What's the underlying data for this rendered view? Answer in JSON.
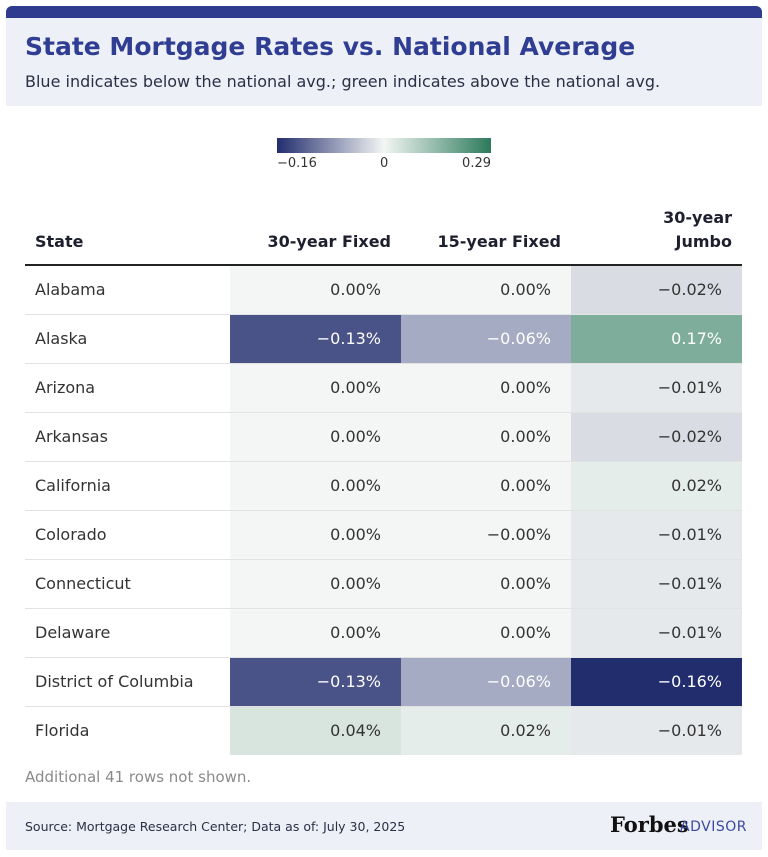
{
  "header": {
    "title": "State Mortgage Rates vs. National Average",
    "subtitle": "Blue indicates below the national avg.; green indicates above the national avg."
  },
  "legend": {
    "ticks": [
      {
        "value": -0.16,
        "label": "−0.16"
      },
      0,
      0.29
    ],
    "colors": [
      "#222d6e",
      "#f3f6f4",
      "#2c7a5c"
    ]
  },
  "table": {
    "columns": [
      "State",
      "30-year Fixed",
      "15-year Fixed",
      "30-year Jumbo"
    ],
    "rows": [
      [
        "Alabama",
        {
          "value": 0,
          "label": "0.00%"
        },
        {
          "value": 0,
          "label": "0.00%"
        },
        {
          "value": -0.02,
          "label": "−0.02%"
        }
      ],
      [
        "Alaska",
        {
          "value": -0.13,
          "label": "−0.13%"
        },
        {
          "value": -0.06,
          "label": "−0.06%"
        },
        {
          "value": 0.17,
          "label": "0.17%"
        }
      ],
      [
        "Arizona",
        {
          "value": 0,
          "label": "0.00%"
        },
        {
          "value": 0,
          "label": "0.00%"
        },
        {
          "value": -0.01,
          "label": "−0.01%"
        }
      ],
      [
        "Arkansas",
        {
          "value": 0,
          "label": "0.00%"
        },
        {
          "value": 0,
          "label": "0.00%"
        },
        {
          "value": -0.02,
          "label": "−0.02%"
        }
      ],
      [
        "California",
        {
          "value": 0,
          "label": "0.00%"
        },
        {
          "value": 0,
          "label": "0.00%"
        },
        {
          "value": 0.02,
          "label": "0.02%"
        }
      ],
      [
        "Colorado",
        {
          "value": 0,
          "label": "0.00%"
        },
        {
          "value": -0.0,
          "label": "−0.00%"
        },
        {
          "value": -0.01,
          "label": "−0.01%"
        }
      ],
      [
        "Connecticut",
        {
          "value": 0,
          "label": "0.00%"
        },
        {
          "value": 0,
          "label": "0.00%"
        },
        {
          "value": -0.01,
          "label": "−0.01%"
        }
      ],
      [
        "Delaware",
        {
          "value": 0,
          "label": "0.00%"
        },
        {
          "value": 0,
          "label": "0.00%"
        },
        {
          "value": -0.01,
          "label": "−0.01%"
        }
      ],
      [
        "District of Columbia",
        {
          "value": -0.13,
          "label": "−0.13%"
        },
        {
          "value": -0.06,
          "label": "−0.06%"
        },
        {
          "value": -0.16,
          "label": "−0.16%"
        }
      ],
      [
        "Florida",
        {
          "value": 0.04,
          "label": "0.04%"
        },
        {
          "value": 0.02,
          "label": "0.02%"
        },
        {
          "value": -0.01,
          "label": "−0.01%"
        }
      ]
    ]
  },
  "note": "Additional 41 rows not shown.",
  "footer": {
    "source": "Source: Mortgage Research Center; Data as of: July 30, 2025",
    "brand": "Forbes",
    "brand_suffix": "ADVISOR"
  }
}
